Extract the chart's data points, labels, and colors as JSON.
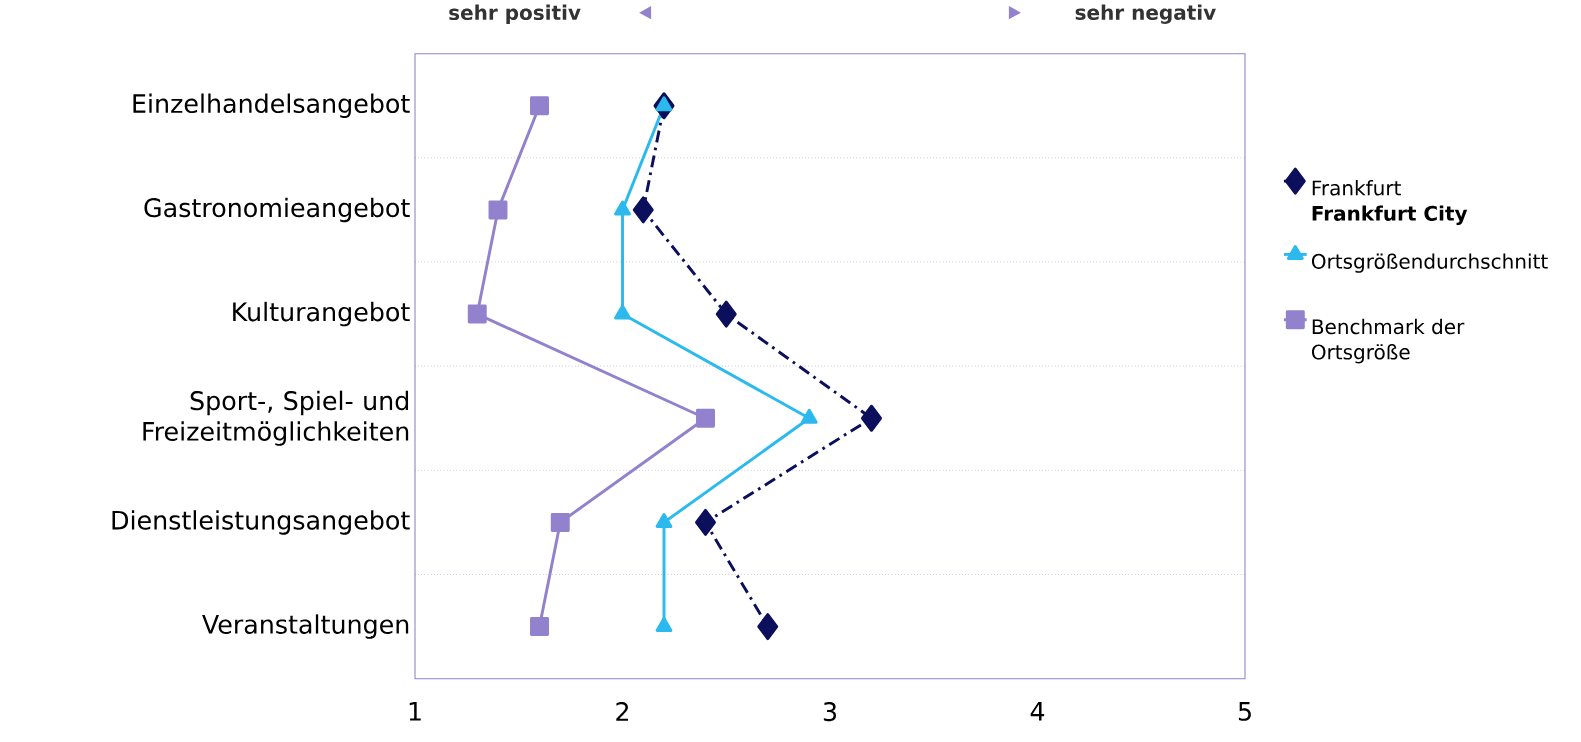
{
  "chart_data": {
    "type": "line",
    "orientation": "horizontal",
    "categories": [
      "Einzelhandelsangebot",
      "Gastronomieangebot",
      "Kulturangebot",
      "Sport-, Spiel- und Freizeitmöglichkeiten",
      "Dienstleistungsangebot",
      "Veranstaltungen"
    ],
    "xlim": [
      1,
      5
    ],
    "xticks": [
      1,
      2,
      3,
      4,
      5
    ],
    "grid": "y",
    "legend": "right",
    "series": [
      {
        "name": "Frankfurt **Frankfurt City**",
        "color": "#0b0f5c",
        "values": [
          2.2,
          2.1,
          2.5,
          3.2,
          2.4,
          2.7
        ],
        "marker": "diamond",
        "line_style": "dashed"
      },
      {
        "name": "Ortsgrößendurchschnitt",
        "color": "#2bb9ee",
        "values": [
          2.2,
          2.0,
          2.0,
          2.9,
          2.2,
          2.2
        ],
        "marker": "triangle",
        "line_style": "solid"
      },
      {
        "name": "Benchmark der Ortsgröße",
        "color": "#9281cc",
        "values": [
          1.6,
          1.4,
          1.3,
          2.4,
          1.7,
          1.6
        ],
        "marker": "square",
        "line_style": "solid"
      }
    ],
    "annotations": [
      "sehr positiv",
      "sehr negativ"
    ]
  }
}
